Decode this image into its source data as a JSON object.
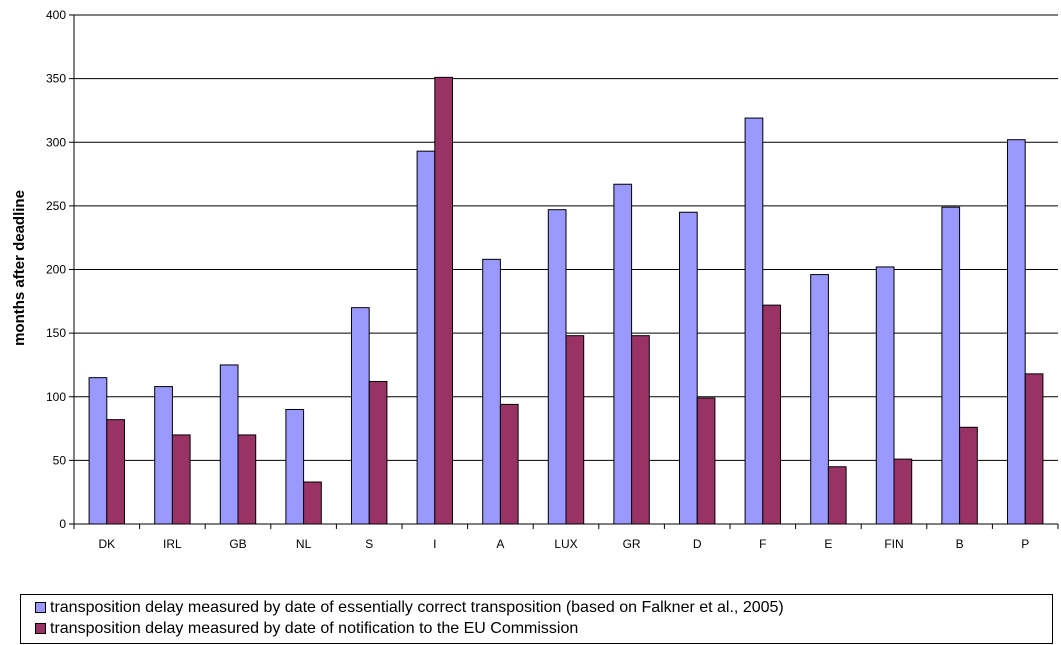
{
  "chart_data": {
    "type": "bar",
    "ylabel": "months after deadline",
    "xlabel": "",
    "ylim": [
      0,
      400
    ],
    "yticks": [
      0,
      50,
      100,
      150,
      200,
      250,
      300,
      350,
      400
    ],
    "grid": true,
    "legend_position": "bottom",
    "categories": [
      "DK",
      "IRL",
      "GB",
      "NL",
      "S",
      "I",
      "A",
      "LUX",
      "GR",
      "D",
      "F",
      "E",
      "FIN",
      "B",
      "P"
    ],
    "series": [
      {
        "name": "transposition delay measured by date of essentially correct transposition (based on Falkner et al., 2005)",
        "color": "#9999ff",
        "values": [
          115,
          108,
          125,
          90,
          170,
          293,
          208,
          247,
          267,
          245,
          319,
          196,
          202,
          249,
          302
        ]
      },
      {
        "name": "transposition delay measured by date of notification to the EU Commission",
        "color": "#993366",
        "values": [
          82,
          70,
          70,
          33,
          112,
          351,
          94,
          148,
          148,
          99,
          172,
          45,
          51,
          76,
          118
        ]
      }
    ]
  }
}
